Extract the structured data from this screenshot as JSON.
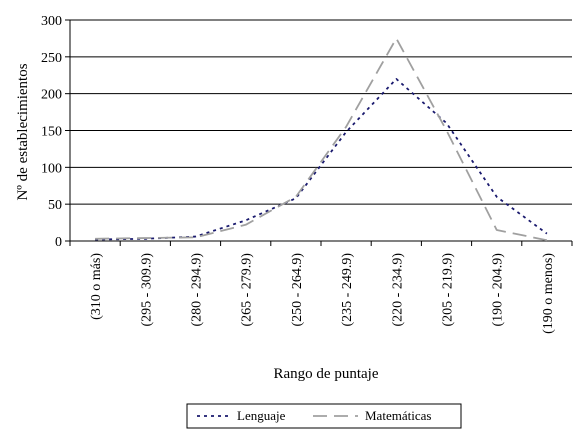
{
  "chart_data": {
    "type": "line",
    "title": "",
    "xlabel": "Rango de puntaje",
    "ylabel": "Nº de establecimientos",
    "ylim": [
      0,
      300
    ],
    "yticks": [
      0,
      50,
      100,
      150,
      200,
      250,
      300
    ],
    "grid": true,
    "legend_position": "bottom",
    "categories": [
      "(310 o más)",
      "(295 - 309.9)",
      "(280 - 294.9)",
      "(265 - 279.9)",
      "(250 - 264.9)",
      "(235 - 249.9)",
      "(220 - 234.9)",
      "(205 - 219.9)",
      "(190 - 204.9)",
      "(190 o menos)"
    ],
    "series": [
      {
        "name": "Lenguaje",
        "values": [
          2,
          3,
          6,
          28,
          58,
          148,
          220,
          160,
          60,
          10
        ],
        "color": "#1a1a6e",
        "dash": "dotted"
      },
      {
        "name": "Matemáticas",
        "values": [
          3,
          4,
          5,
          22,
          60,
          155,
          275,
          150,
          15,
          1
        ],
        "color": "#a0a0a0",
        "dash": "long-dash"
      }
    ]
  }
}
